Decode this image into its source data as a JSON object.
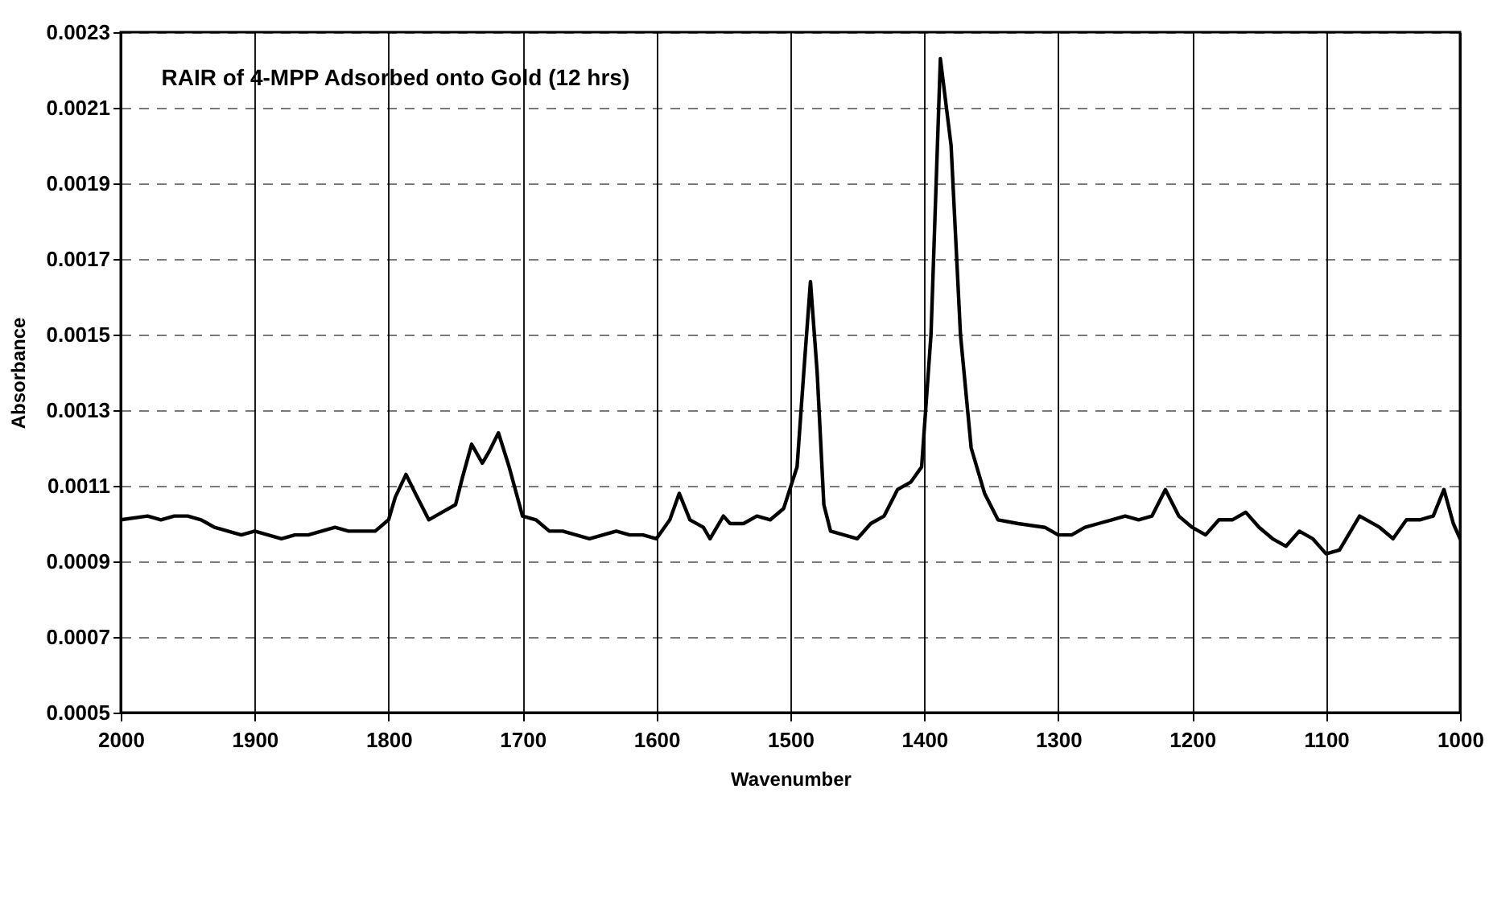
{
  "chart_data": {
    "type": "line",
    "title": "RAIR of 4-MPP Adsorbed onto Gold (12 hrs)",
    "xlabel": "Wavenumber",
    "ylabel": "Absorbance",
    "x": [
      2000,
      1980,
      1970,
      1960,
      1950,
      1940,
      1930,
      1920,
      1910,
      1900,
      1890,
      1880,
      1870,
      1860,
      1850,
      1840,
      1830,
      1820,
      1810,
      1800,
      1795,
      1787,
      1780,
      1770,
      1760,
      1750,
      1745,
      1738,
      1730,
      1725,
      1718,
      1710,
      1700,
      1690,
      1680,
      1670,
      1660,
      1650,
      1640,
      1630,
      1620,
      1610,
      1600,
      1590,
      1583,
      1575,
      1565,
      1560,
      1550,
      1545,
      1535,
      1525,
      1515,
      1505,
      1495,
      1490,
      1485,
      1480,
      1475,
      1470,
      1460,
      1450,
      1440,
      1430,
      1420,
      1410,
      1402,
      1395,
      1388,
      1380,
      1373,
      1365,
      1355,
      1345,
      1330,
      1310,
      1300,
      1290,
      1280,
      1270,
      1260,
      1250,
      1240,
      1230,
      1220,
      1210,
      1200,
      1190,
      1180,
      1170,
      1160,
      1150,
      1140,
      1130,
      1120,
      1110,
      1100,
      1090,
      1075,
      1060,
      1050,
      1040,
      1030,
      1020,
      1012,
      1005,
      1000
    ],
    "series": [
      {
        "color": "#000000",
        "values": [
          0.00101,
          0.00102,
          0.00101,
          0.00102,
          0.00102,
          0.00101,
          0.00099,
          0.00098,
          0.00097,
          0.00098,
          0.00097,
          0.00096,
          0.00097,
          0.00097,
          0.00098,
          0.00099,
          0.00098,
          0.00098,
          0.00098,
          0.00101,
          0.00107,
          0.00113,
          0.00108,
          0.00101,
          0.00103,
          0.00105,
          0.00112,
          0.00121,
          0.00116,
          0.00119,
          0.00124,
          0.00115,
          0.00102,
          0.00101,
          0.00098,
          0.00098,
          0.00097,
          0.00096,
          0.00097,
          0.00098,
          0.00097,
          0.00097,
          0.00096,
          0.00101,
          0.00108,
          0.00101,
          0.00099,
          0.00096,
          0.00102,
          0.001,
          0.001,
          0.00102,
          0.00101,
          0.00104,
          0.00115,
          0.0014,
          0.00164,
          0.0014,
          0.00105,
          0.00098,
          0.00097,
          0.00096,
          0.001,
          0.00102,
          0.00109,
          0.00111,
          0.00115,
          0.0015,
          0.00223,
          0.002,
          0.0015,
          0.0012,
          0.00108,
          0.00101,
          0.001,
          0.00099,
          0.00097,
          0.00097,
          0.00099,
          0.001,
          0.00101,
          0.00102,
          0.00101,
          0.00102,
          0.00109,
          0.00102,
          0.00099,
          0.00097,
          0.00101,
          0.00101,
          0.00103,
          0.00099,
          0.00096,
          0.00094,
          0.00098,
          0.00096,
          0.00092,
          0.00093,
          0.00102,
          0.00099,
          0.00096,
          0.00101,
          0.00101,
          0.00102,
          0.00109,
          0.001,
          0.00096
        ]
      }
    ],
    "xlim": [
      2000,
      1000
    ],
    "xticks": [
      2000,
      1900,
      1800,
      1700,
      1600,
      1500,
      1400,
      1300,
      1200,
      1100,
      1000
    ],
    "ylim": [
      0.0005,
      0.0023
    ],
    "yticks": [
      {
        "value": 0.0005,
        "label": "0.0005"
      },
      {
        "value": 0.0007,
        "label": "0.0007"
      },
      {
        "value": 0.0009,
        "label": "0.0009"
      },
      {
        "value": 0.0011,
        "label": "0.0011"
      },
      {
        "value": 0.0013,
        "label": "0.0013"
      },
      {
        "value": 0.0015,
        "label": "0.0015"
      },
      {
        "value": 0.0017,
        "label": "0.0017"
      },
      {
        "value": 0.0019,
        "label": "0.0019"
      },
      {
        "value": 0.0021,
        "label": "0.0021"
      },
      {
        "value": 0.0023,
        "label": "0.0023"
      }
    ],
    "grid": true,
    "marker": "none",
    "line_style": "solid"
  }
}
